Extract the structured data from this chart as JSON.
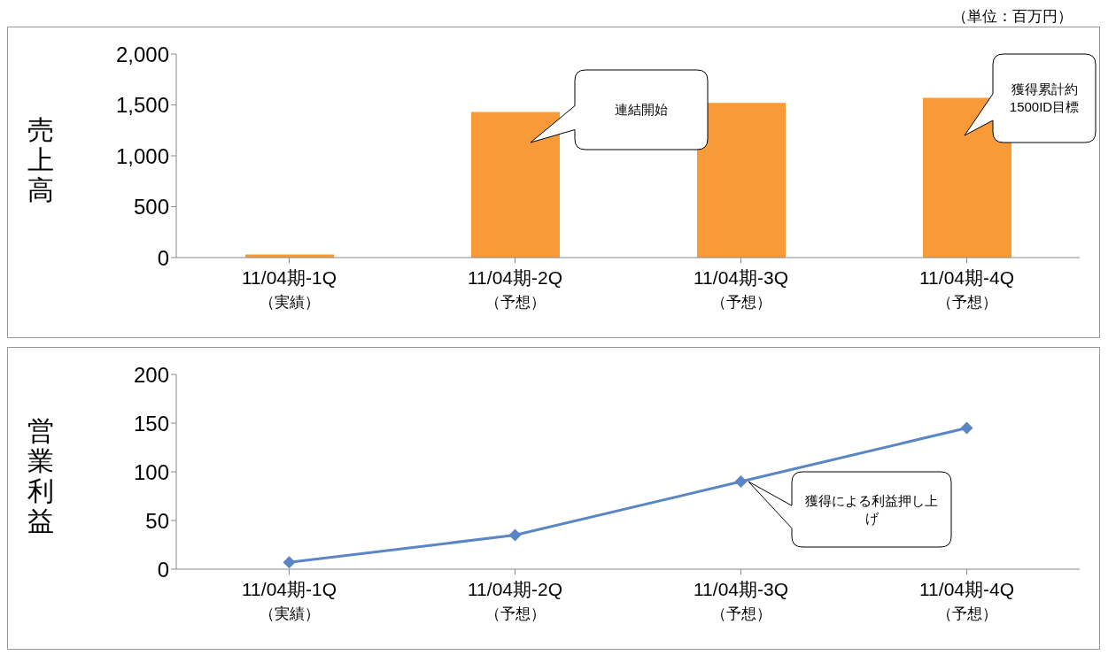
{
  "chart_data": [
    {
      "type": "bar",
      "ylabel": "売上高",
      "categories": [
        "11/04期-1Q\n（実績）",
        "11/04期-2Q\n（予想）",
        "11/04期-3Q\n（予想）",
        "11/04期-4Q\n（予想）"
      ],
      "values": [
        30,
        1430,
        1520,
        1570
      ],
      "color": "#f99a38",
      "ylim": [
        0,
        2000
      ],
      "yticks": [
        0,
        {
          "value": 500,
          "label": "500"
        },
        {
          "value": 1000,
          "label": "1,000"
        },
        {
          "value": 1500,
          "label": "1,500"
        },
        {
          "value": 2000,
          "label": "2,000"
        }
      ],
      "grid": false,
      "legend": false,
      "annotations": [
        "（単位：百万円）",
        "連結開始",
        "獲得累計約1500ID目標"
      ]
    },
    {
      "type": "line",
      "ylabel": "営業利益",
      "categories": [
        "11/04期-1Q\n（実績）",
        "11/04期-2Q\n（予想）",
        "11/04期-3Q\n（予想）",
        "11/04期-4Q\n（予想）"
      ],
      "values": [
        7,
        35,
        90,
        145
      ],
      "color": "#5b86c5",
      "marker": "diamond",
      "line_style": "solid",
      "ylim": [
        0,
        200
      ],
      "yticks": [
        0,
        50,
        100,
        150,
        200
      ],
      "grid": false,
      "legend": false,
      "annotations": [
        "獲得による利益押し上げ"
      ]
    }
  ]
}
